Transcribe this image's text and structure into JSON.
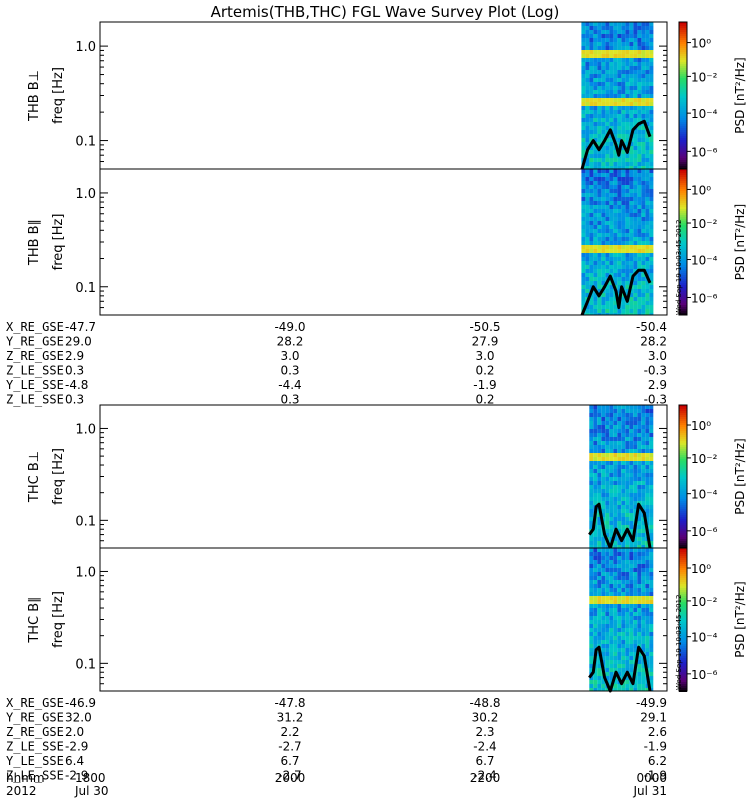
{
  "figure": {
    "title": "Artemis(THB,THC) FGL Wave Survey Plot (Log)",
    "stamp": "Wed Sep 19 10:03:45 2012"
  },
  "chart_data": [
    {
      "type": "heatmap",
      "probe": "THB",
      "ylabel_main": "THB B⊥",
      "ylabel_sub": "freq [Hz]",
      "yscale": "log",
      "ylim": [
        0.05,
        1.8
      ],
      "yticks": [
        "1.0",
        "0.1"
      ],
      "data_x_range": [
        0.849,
        0.97
      ],
      "band_freqs": [
        0.25,
        0.8
      ],
      "curve_x": [
        0.85,
        0.86,
        0.87,
        0.88,
        0.89,
        0.9,
        0.91,
        0.915,
        0.92,
        0.93,
        0.94,
        0.95,
        0.96,
        0.97
      ],
      "curve_y": [
        0.05,
        0.08,
        0.1,
        0.08,
        0.1,
        0.13,
        0.09,
        0.07,
        0.1,
        0.075,
        0.13,
        0.15,
        0.16,
        0.11
      ],
      "colorbar": {
        "label": "PSD [nT²/Hz]",
        "ticks": [
          "10⁰",
          "10⁻²",
          "10⁻⁴",
          "10⁻⁶"
        ]
      }
    },
    {
      "type": "heatmap",
      "probe": "THB",
      "ylabel_main": "THB B∥",
      "ylabel_sub": "freq [Hz]",
      "yscale": "log",
      "ylim": [
        0.05,
        1.8
      ],
      "yticks": [
        "1.0",
        "0.1"
      ],
      "data_x_range": [
        0.849,
        0.97
      ],
      "band_freqs": [
        0.25
      ],
      "curve_x": [
        0.85,
        0.86,
        0.87,
        0.88,
        0.89,
        0.9,
        0.91,
        0.915,
        0.92,
        0.93,
        0.94,
        0.95,
        0.96,
        0.97
      ],
      "curve_y": [
        0.05,
        0.07,
        0.1,
        0.08,
        0.1,
        0.13,
        0.09,
        0.06,
        0.1,
        0.07,
        0.13,
        0.15,
        0.15,
        0.11
      ],
      "colorbar": {
        "label": "PSD [nT²/Hz]",
        "ticks": [
          "10⁰",
          "10⁻²",
          "10⁻⁴",
          "10⁻⁶"
        ]
      }
    },
    {
      "type": "heatmap",
      "probe": "THC",
      "ylabel_main": "THC B⊥",
      "ylabel_sub": "freq [Hz]",
      "yscale": "log",
      "ylim": [
        0.05,
        1.8
      ],
      "yticks": [
        "1.0",
        "0.1"
      ],
      "data_x_range": [
        0.863,
        0.97
      ],
      "band_freqs": [
        0.5
      ],
      "curve_x": [
        0.863,
        0.87,
        0.875,
        0.88,
        0.89,
        0.9,
        0.91,
        0.92,
        0.93,
        0.94,
        0.95,
        0.96,
        0.97
      ],
      "curve_y": [
        0.07,
        0.08,
        0.14,
        0.15,
        0.07,
        0.05,
        0.08,
        0.06,
        0.08,
        0.06,
        0.15,
        0.12,
        0.05
      ],
      "colorbar": {
        "label": "PSD [nT²/Hz]",
        "ticks": [
          "10⁰",
          "10⁻²",
          "10⁻⁴",
          "10⁻⁶"
        ]
      }
    },
    {
      "type": "heatmap",
      "probe": "THC",
      "ylabel_main": "THC B∥",
      "ylabel_sub": "freq [Hz]",
      "yscale": "log",
      "ylim": [
        0.05,
        1.8
      ],
      "yticks": [
        "1.0",
        "0.1"
      ],
      "data_x_range": [
        0.863,
        0.97
      ],
      "band_freqs": [
        0.5
      ],
      "curve_x": [
        0.863,
        0.87,
        0.875,
        0.88,
        0.89,
        0.9,
        0.91,
        0.92,
        0.93,
        0.94,
        0.95,
        0.96,
        0.97
      ],
      "curve_y": [
        0.07,
        0.08,
        0.14,
        0.15,
        0.07,
        0.05,
        0.08,
        0.06,
        0.08,
        0.06,
        0.15,
        0.12,
        0.05
      ],
      "colorbar": {
        "label": "PSD [nT²/Hz]",
        "ticks": [
          "10⁰",
          "10⁻²",
          "10⁻⁴",
          "10⁻⁶"
        ]
      }
    }
  ],
  "ephemeris_thb": [
    {
      "label": "X_RE_GSE",
      "values": [
        "-47.7",
        "-49.0",
        "-50.5",
        "-50.4"
      ]
    },
    {
      "label": "Y_RE_GSE",
      "values": [
        "29.0",
        "28.2",
        "27.9",
        "28.2"
      ]
    },
    {
      "label": "Z_RE_GSE",
      "values": [
        "2.9",
        "3.0",
        "3.0",
        "3.0"
      ]
    },
    {
      "label": "Z_LE_SSE",
      "values": [
        "0.3",
        "0.3",
        "0.2",
        "-0.3"
      ]
    },
    {
      "label": "Y_LE_SSE",
      "values": [
        "-4.8",
        "-4.4",
        "-1.9",
        "2.9"
      ]
    },
    {
      "label": "Z_LE_SSE",
      "values": [
        "0.3",
        "0.3",
        "0.2",
        "-0.3"
      ]
    }
  ],
  "ephemeris_thc": [
    {
      "label": "X_RE_GSE",
      "values": [
        "-46.9",
        "-47.8",
        "-48.8",
        "-49.9"
      ]
    },
    {
      "label": "Y_RE_GSE",
      "values": [
        "32.0",
        "31.2",
        "30.2",
        "29.1"
      ]
    },
    {
      "label": "Z_RE_GSE",
      "values": [
        "2.0",
        "2.2",
        "2.3",
        "2.6"
      ]
    },
    {
      "label": "Z_LE_SSE",
      "values": [
        "-2.9",
        "-2.7",
        "-2.4",
        "-1.9"
      ]
    },
    {
      "label": "Y_LE_SSE",
      "values": [
        "6.4",
        "6.7",
        "6.7",
        "6.2"
      ]
    },
    {
      "label": "Z_LE_SSE",
      "values": [
        "-2.9",
        "-2.7",
        "-2.4",
        "-1.9"
      ]
    }
  ],
  "time_axis": {
    "row_label": "hhmm",
    "year_label": "2012",
    "ticks": [
      "1800",
      "2000",
      "2200",
      "0000"
    ],
    "dates": [
      "Jul 30",
      "",
      "",
      "Jul 31"
    ]
  }
}
